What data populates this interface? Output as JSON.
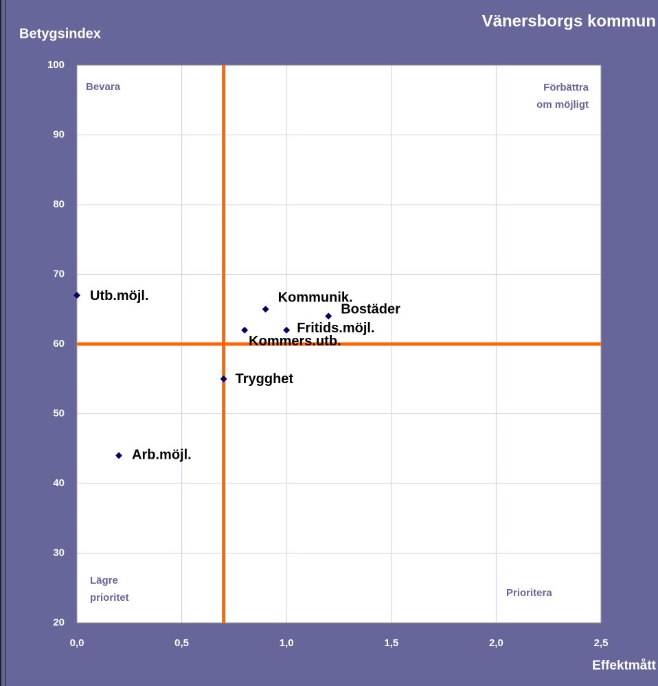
{
  "chart_data": {
    "type": "scatter",
    "title": "Vänersborgs kommun",
    "y_label": "Betygsindex",
    "x_label": "Effektmått",
    "points": [
      {
        "label": "Utb.möjl.",
        "x": 0.0,
        "y": 67
      },
      {
        "label": "Kommunik.",
        "x": 0.9,
        "y": 65
      },
      {
        "label": "Bostäder",
        "x": 1.2,
        "y": 64
      },
      {
        "label": "Kommers.utb.",
        "x": 0.8,
        "y": 62
      },
      {
        "label": "Fritids.möjl.",
        "x": 1.0,
        "y": 62
      },
      {
        "label": "Trygghet",
        "x": 0.7,
        "y": 55
      },
      {
        "label": "Arb.möjl.",
        "x": 0.2,
        "y": 44
      }
    ],
    "color": "#000066",
    "reference_lines": {
      "x": 0.7,
      "y": 60,
      "color": "#ff6600"
    },
    "quadrant_labels": {
      "top_left": [
        "Bevara"
      ],
      "top_right": [
        "Förbättra",
        "om möjligt"
      ],
      "bottom_left": [
        "Lägre",
        "prioritet"
      ],
      "bottom_right": [
        "Prioritera"
      ]
    },
    "xlim": [
      0,
      2.5
    ],
    "xticks": [
      {
        "value": 0,
        "label": "0,0"
      },
      {
        "value": 0.5,
        "label": "0,5"
      },
      {
        "value": 1,
        "label": "1,0"
      },
      {
        "value": 1.5,
        "label": "1,5"
      },
      {
        "value": 2,
        "label": "2,0"
      },
      {
        "value": 2.5,
        "label": "2,5"
      }
    ],
    "ylim": [
      20,
      100
    ],
    "yticks": [
      20,
      30,
      40,
      50,
      60,
      70,
      80,
      90,
      100
    ],
    "grid": true
  }
}
